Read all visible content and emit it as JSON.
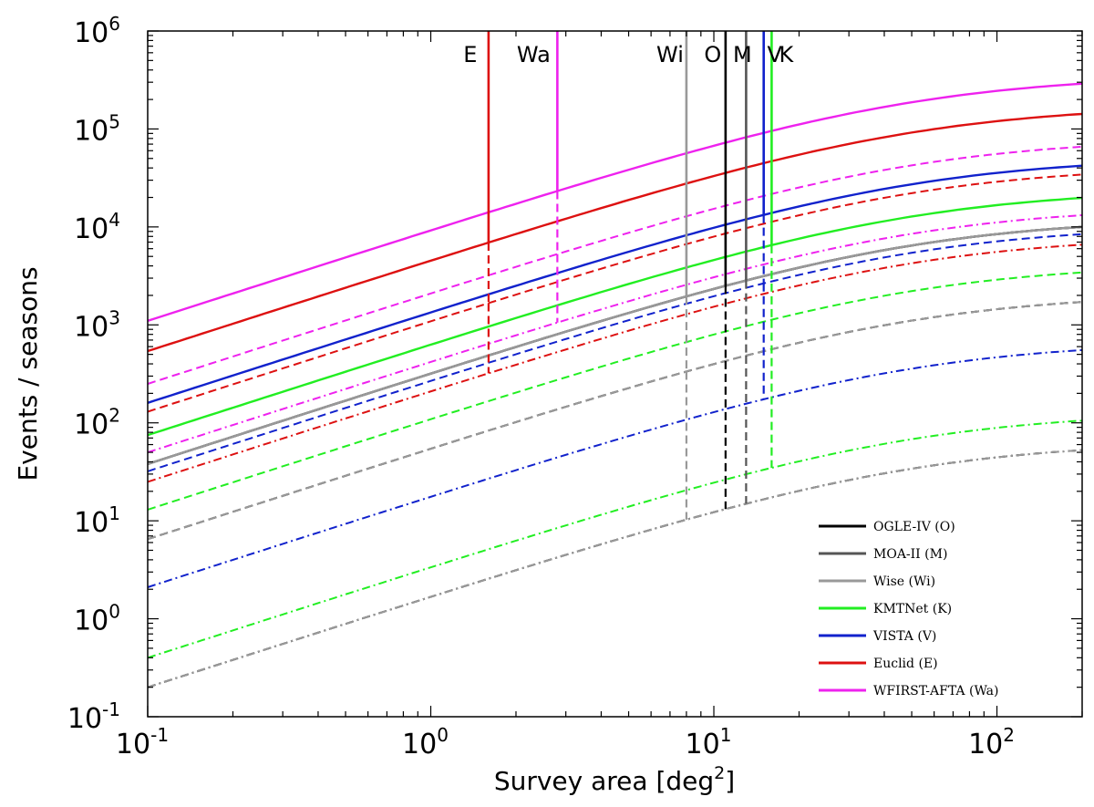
{
  "chart_data": {
    "type": "line",
    "title": "",
    "xlabel": "Survey area  [deg",
    "xlabel_sup": "2",
    "xlabel_end": "]",
    "ylabel": "Events / seasons",
    "xscale": "log",
    "yscale": "log",
    "xlim": [
      0.1,
      200
    ],
    "ylim": [
      0.1,
      1000000
    ],
    "x_ticks": [
      {
        "value": 0.1,
        "base": "10",
        "exp": "-1"
      },
      {
        "value": 1,
        "base": "10",
        "exp": "0"
      },
      {
        "value": 10,
        "base": "10",
        "exp": "1"
      },
      {
        "value": 100,
        "base": "10",
        "exp": "2"
      }
    ],
    "y_ticks": [
      {
        "value": 0.1,
        "base": "10",
        "exp": "-1"
      },
      {
        "value": 1,
        "base": "10",
        "exp": "0"
      },
      {
        "value": 10,
        "base": "10",
        "exp": "1"
      },
      {
        "value": 100,
        "base": "10",
        "exp": "2"
      },
      {
        "value": 1000,
        "base": "10",
        "exp": "3"
      },
      {
        "value": 10000,
        "base": "10",
        "exp": "4"
      },
      {
        "value": 100000,
        "base": "10",
        "exp": "5"
      },
      {
        "value": 1000000,
        "base": "10",
        "exp": "6"
      }
    ],
    "legend_position": "bottom-right",
    "series": [
      {
        "name": "OGLE-IV  (O)",
        "short": "O",
        "color": "#000000",
        "area": 11,
        "levels": [
          {
            "style": "solid",
            "at0_1": 38
          },
          {
            "style": "dashed",
            "at0_1": 6.5
          },
          {
            "style": "dashdot",
            "at0_1": 0.2
          }
        ]
      },
      {
        "name": "MOA-II  (M)",
        "short": "M",
        "color": "#555555",
        "area": 13,
        "levels": [
          {
            "style": "solid",
            "at0_1": 38
          },
          {
            "style": "dashed",
            "at0_1": 6.5
          },
          {
            "style": "dashdot",
            "at0_1": 0.2
          }
        ]
      },
      {
        "name": "Wise (Wi)",
        "short": "Wi",
        "color": "#999999",
        "area": 8,
        "levels": [
          {
            "style": "solid",
            "at0_1": 38
          },
          {
            "style": "dashed",
            "at0_1": 6.5
          },
          {
            "style": "dashdot",
            "at0_1": 0.2
          }
        ]
      },
      {
        "name": "KMTNet  (K)",
        "short": "K",
        "color": "#22ee22",
        "area": 16,
        "levels": [
          {
            "style": "solid",
            "at0_1": 75
          },
          {
            "style": "dashed",
            "at0_1": 13
          },
          {
            "style": "dashdot",
            "at0_1": 0.4
          }
        ]
      },
      {
        "name": "VISTA  (V)",
        "short": "V",
        "color": "#1122cc",
        "area": 15,
        "levels": [
          {
            "style": "solid",
            "at0_1": 160
          },
          {
            "style": "dashed",
            "at0_1": 32
          },
          {
            "style": "dashdot",
            "at0_1": 2.1
          }
        ]
      },
      {
        "name": "Euclid  (E)",
        "short": "E",
        "color": "#dd1111",
        "area": 1.6,
        "levels": [
          {
            "style": "solid",
            "at0_1": 540
          },
          {
            "style": "dashed",
            "at0_1": 130
          },
          {
            "style": "dashdot",
            "at0_1": 25
          }
        ]
      },
      {
        "name": "WFIRST-AFTA  (Wa)",
        "short": "Wa",
        "color": "#ee22ee",
        "area": 2.8,
        "levels": [
          {
            "style": "solid",
            "at0_1": 1100
          },
          {
            "style": "dashed",
            "at0_1": 250
          },
          {
            "style": "dashdot",
            "at0_1": 50
          }
        ]
      }
    ],
    "top_labels": [
      "E",
      "Wa",
      "Wi",
      "O",
      "M",
      "V",
      "K"
    ],
    "line_shape": {
      "log_slope": 0.93,
      "saturation_area": 50
    }
  }
}
